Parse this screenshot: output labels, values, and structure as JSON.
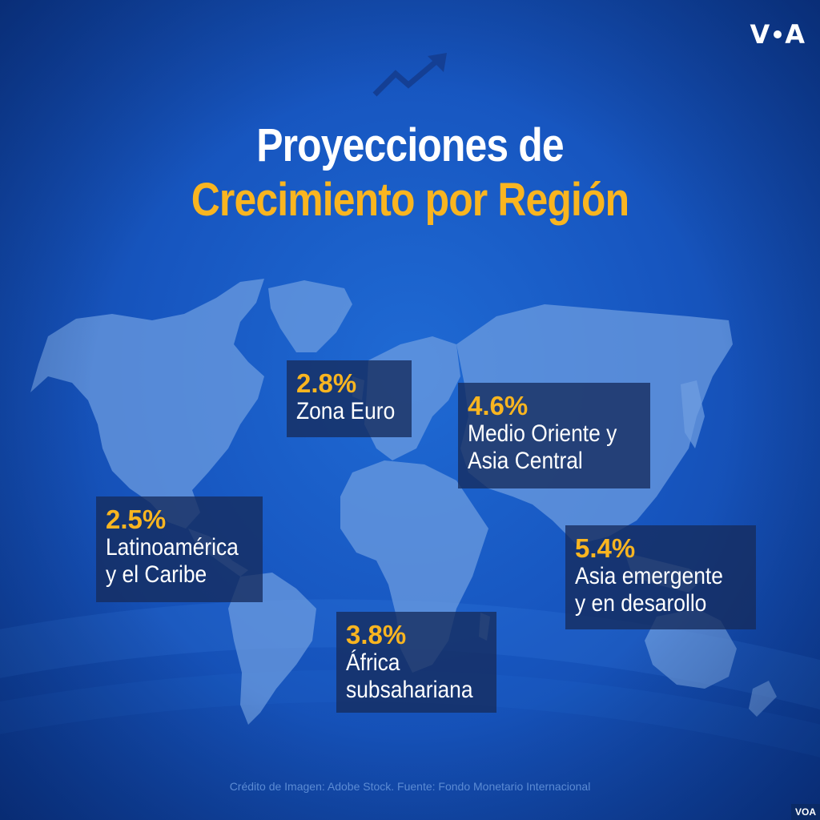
{
  "brand": {
    "logo_text_left": "V",
    "logo_text_right": "A"
  },
  "title": {
    "line1": "Proyecciones de",
    "line2": "Crecimiento por Región"
  },
  "colors": {
    "background": "#1756c0",
    "accent": "#f9b520",
    "land": "#6f9ee0",
    "label_box": "#162c5c"
  },
  "icons": {
    "trend": "trending-up-arrow-icon",
    "logo": "voa-logo"
  },
  "regions": [
    {
      "percent": "2.8%",
      "name_lines": [
        "Zona Euro"
      ]
    },
    {
      "percent": "4.6%",
      "name_lines": [
        "Medio Oriente y",
        "Asia Central"
      ]
    },
    {
      "percent": "2.5%",
      "name_lines": [
        "Latinoamérica",
        "y el Caribe"
      ]
    },
    {
      "percent": "5.4%",
      "name_lines": [
        "Asia emergente",
        "y en desarollo"
      ]
    },
    {
      "percent": "3.8%",
      "name_lines": [
        "África",
        "subsahariana"
      ]
    }
  ],
  "credit": "Crédito de Imagen: Adobe Stock. Fuente: Fondo Monetario Internacional",
  "corner_badge": "VOA"
}
